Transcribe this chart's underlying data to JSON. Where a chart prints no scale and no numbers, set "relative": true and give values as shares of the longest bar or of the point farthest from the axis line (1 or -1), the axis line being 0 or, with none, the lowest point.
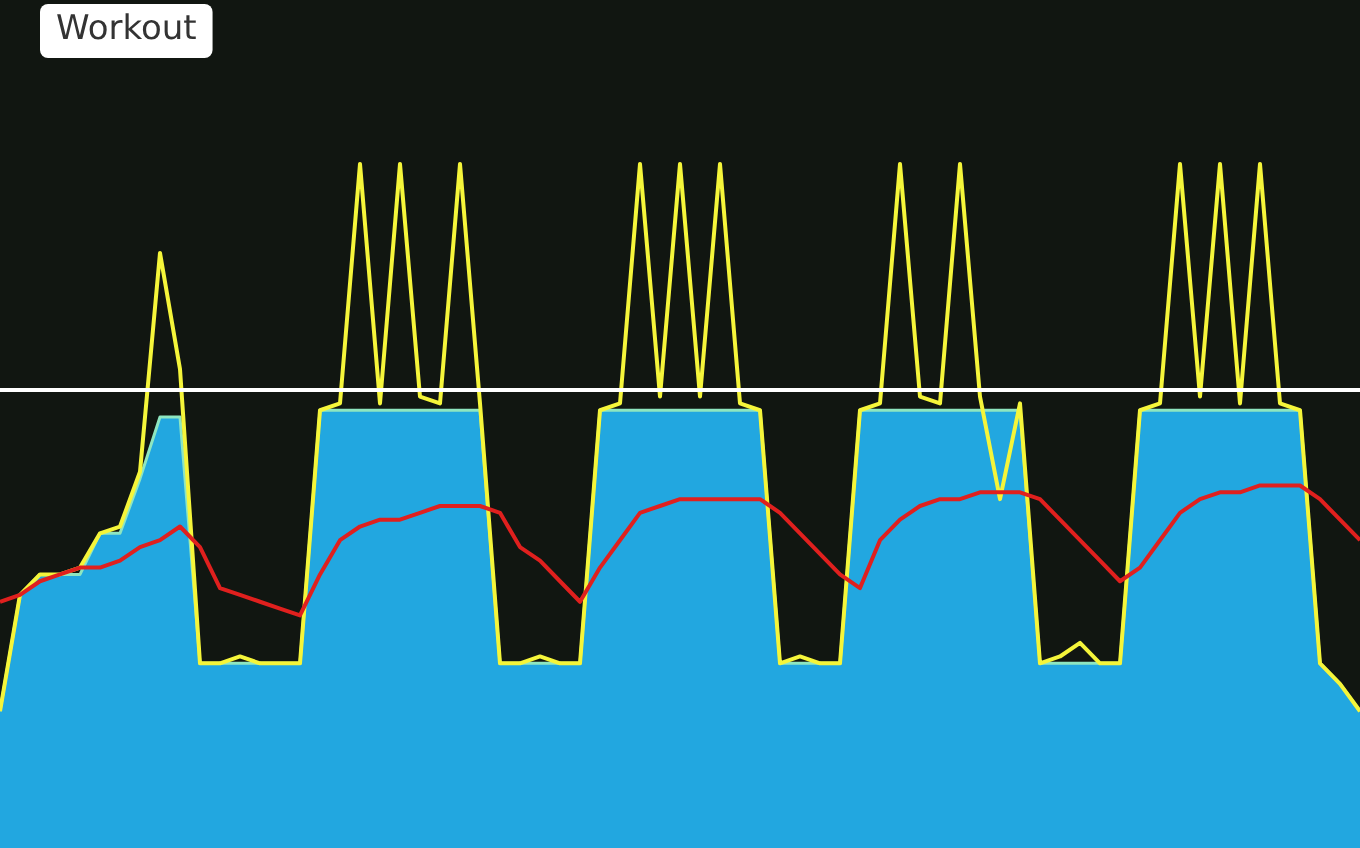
{
  "chart_data": {
    "type": "line",
    "title": "Workout",
    "relative": true,
    "marker": "none",
    "grid": false,
    "categories": [
      null,
      null,
      null,
      null,
      null,
      null,
      null,
      null,
      null,
      null,
      null,
      null,
      null,
      null,
      null,
      null,
      null,
      null,
      null,
      null,
      null,
      null,
      null,
      null,
      null,
      null,
      null,
      null,
      null,
      null,
      null,
      null,
      null,
      null,
      null,
      null,
      null,
      null,
      null,
      null,
      null,
      null,
      null,
      null,
      null,
      null,
      null,
      null,
      null,
      null,
      null,
      null,
      null,
      null,
      null,
      null,
      null,
      null,
      null,
      null,
      null,
      null,
      null,
      null,
      null,
      null,
      null,
      null,
      null
    ],
    "series": [
      {
        "type": "area",
        "color": "#22a7e0",
        "values": [
          0.2,
          0.37,
          0.4,
          0.4,
          0.4,
          0.46,
          0.46,
          0.54,
          0.63,
          0.63,
          0.27,
          0.27,
          0.27,
          0.27,
          0.27,
          0.27,
          0.64,
          0.64,
          0.64,
          0.64,
          0.64,
          0.64,
          0.64,
          0.64,
          0.64,
          0.27,
          0.27,
          0.27,
          0.27,
          0.27,
          0.64,
          0.64,
          0.64,
          0.64,
          0.64,
          0.64,
          0.64,
          0.64,
          0.64,
          0.27,
          0.27,
          0.27,
          0.27,
          0.64,
          0.64,
          0.64,
          0.64,
          0.64,
          0.64,
          0.64,
          0.64,
          0.64,
          0.27,
          0.27,
          0.27,
          0.27,
          0.27,
          0.64,
          0.64,
          0.64,
          0.64,
          0.64,
          0.64,
          0.64,
          0.64,
          0.64,
          0.27,
          0.24,
          0.2
        ]
      },
      {
        "type": "line",
        "color": "#f5f53a",
        "values": [
          0.2,
          0.37,
          0.4,
          0.4,
          0.41,
          0.46,
          0.47,
          0.55,
          0.87,
          0.7,
          0.27,
          0.27,
          0.28,
          0.27,
          0.27,
          0.27,
          0.64,
          0.65,
          1.0,
          0.65,
          1.0,
          0.66,
          0.65,
          1.0,
          0.65,
          0.27,
          0.27,
          0.28,
          0.27,
          0.27,
          0.64,
          0.65,
          1.0,
          0.66,
          1.0,
          0.66,
          1.0,
          0.65,
          0.64,
          0.27,
          0.28,
          0.27,
          0.27,
          0.64,
          0.65,
          1.0,
          0.66,
          0.65,
          1.0,
          0.66,
          0.51,
          0.65,
          0.27,
          0.28,
          0.3,
          0.27,
          0.27,
          0.64,
          0.65,
          1.0,
          0.66,
          1.0,
          0.65,
          1.0,
          0.65,
          0.64,
          0.27,
          0.24,
          0.2
        ]
      },
      {
        "type": "line",
        "color": "#e0201e",
        "values": [
          0.36,
          0.37,
          0.39,
          0.4,
          0.41,
          0.41,
          0.42,
          0.44,
          0.45,
          0.47,
          0.44,
          0.38,
          0.37,
          0.36,
          0.35,
          0.34,
          0.4,
          0.45,
          0.47,
          0.48,
          0.48,
          0.49,
          0.5,
          0.5,
          0.5,
          0.49,
          0.44,
          0.42,
          0.39,
          0.36,
          0.41,
          0.45,
          0.49,
          0.5,
          0.51,
          0.51,
          0.51,
          0.51,
          0.51,
          0.49,
          0.46,
          0.43,
          0.4,
          0.38,
          0.45,
          0.48,
          0.5,
          0.51,
          0.51,
          0.52,
          0.52,
          0.52,
          0.51,
          0.48,
          0.45,
          0.42,
          0.39,
          0.41,
          0.45,
          0.49,
          0.51,
          0.52,
          0.52,
          0.53,
          0.53,
          0.53,
          0.51,
          0.48,
          0.45
        ]
      }
    ],
    "ref_lines": [
      {
        "axis": "y",
        "value": 0.67,
        "color": "#ffffff"
      }
    ]
  }
}
